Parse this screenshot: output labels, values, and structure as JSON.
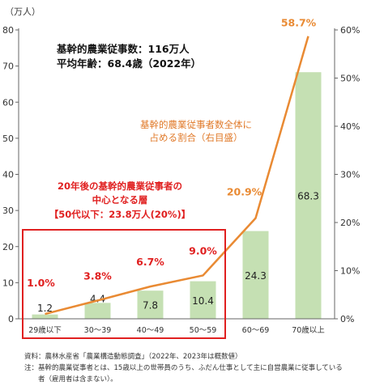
{
  "chart_data": {
    "type": "bar",
    "unit_label": "（万人）",
    "categories": [
      "29歳以下",
      "30～39",
      "40～49",
      "50～59",
      "60～69",
      "70歳以上"
    ],
    "series": [
      {
        "values": [
          1.2,
          4.4,
          7.8,
          10.4,
          24.3,
          68.3
        ],
        "axis": "left"
      },
      {
        "values": [
          1.0,
          3.8,
          6.7,
          9.0,
          20.9,
          58.7
        ],
        "axis": "right",
        "type": "line"
      }
    ],
    "bar_labels": [
      "1.2",
      "4.4",
      "7.8",
      "10.4",
      "24.3",
      "68.3"
    ],
    "pct_labels": [
      "1.0%",
      "3.8%",
      "6.7%",
      "9.0%",
      "20.9%",
      "58.7%"
    ],
    "ylim": [
      0,
      80
    ],
    "y_ticks": [
      "0",
      "10",
      "20",
      "30",
      "40",
      "50",
      "60",
      "70",
      "80"
    ],
    "y2lim": [
      0,
      60
    ],
    "y2_ticks": [
      "0%",
      "10%",
      "20%",
      "30%",
      "40%",
      "50%",
      "60%"
    ],
    "grid": false,
    "colors": {
      "bar": "#c5e0b3",
      "line": "#e98a33",
      "highlight": "#e02020",
      "pct_red": "#e02020",
      "pct_last": "#e98a33"
    }
  },
  "info": {
    "line1": "基幹的農業従事数：116万人",
    "line2": "平均年齢：68.4歳（2022年）"
  },
  "orange_note": {
    "line1": "基幹的農業従事者数全体に",
    "line2": "占める割合（右目盛）"
  },
  "red_note": {
    "line1": "20年後の基幹的農業従事者の",
    "line2": "中心となる層",
    "line3": "【50代以下：23.8万人(20%)】"
  },
  "footnote": {
    "line1": "資料：農林水産省「農業構造動態調査」（2022年、2023年は概数値）",
    "line2": "注：基幹的農業従事者とは、15歳以上の世帯員のうち、ふだん仕事として主に自営農業に従事している",
    "line3": "　　者（雇用者は含まない）。"
  }
}
